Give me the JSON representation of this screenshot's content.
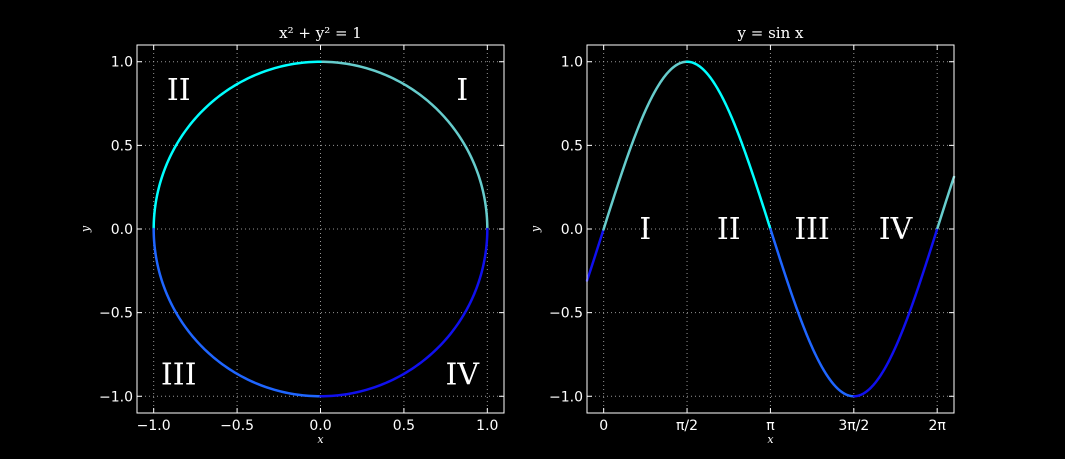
{
  "chart_data": [
    {
      "type": "line",
      "title": "x² + y² = 1",
      "xlabel": "x",
      "ylabel": "y",
      "xlim": [
        -1.1,
        1.1
      ],
      "ylim": [
        -1.1,
        1.1
      ],
      "grid": true,
      "xticks": [
        {
          "value": -1.0,
          "label": "−1.0"
        },
        {
          "value": -0.5,
          "label": "−0.5"
        },
        {
          "value": 0.0,
          "label": "0.0"
        },
        {
          "value": 0.5,
          "label": "0.5"
        },
        {
          "value": 1.0,
          "label": "1.0"
        }
      ],
      "yticks": [
        {
          "value": -1.0,
          "label": "−1.0"
        },
        {
          "value": -0.5,
          "label": "−0.5"
        },
        {
          "value": 0.0,
          "label": "0.0"
        },
        {
          "value": 0.5,
          "label": "0.5"
        },
        {
          "value": 1.0,
          "label": "1.0"
        }
      ],
      "curve": "unit-circle",
      "annotations": [
        {
          "text": "I",
          "x": 0.85,
          "y": 0.83
        },
        {
          "text": "II",
          "x": -0.85,
          "y": 0.83
        },
        {
          "text": "III",
          "x": -0.85,
          "y": -0.87
        },
        {
          "text": "IV",
          "x": 0.85,
          "y": -0.87
        }
      ]
    },
    {
      "type": "line",
      "title": "y = sin x",
      "xlabel": "x",
      "ylabel": "y",
      "xlim": [
        -0.314,
        6.6
      ],
      "ylim": [
        -1.1,
        1.1
      ],
      "grid": true,
      "xticks": [
        {
          "value": 0,
          "label": "0"
        },
        {
          "value": 1.5708,
          "label": "π/2"
        },
        {
          "value": 3.1416,
          "label": "π"
        },
        {
          "value": 4.7124,
          "label": "3π/2"
        },
        {
          "value": 6.2832,
          "label": "2π"
        }
      ],
      "yticks": [
        {
          "value": -1.0,
          "label": "−1.0"
        },
        {
          "value": -0.5,
          "label": "−0.5"
        },
        {
          "value": 0.0,
          "label": "0.0"
        },
        {
          "value": 0.5,
          "label": "0.5"
        },
        {
          "value": 1.0,
          "label": "1.0"
        }
      ],
      "curve": "sine",
      "annotations": [
        {
          "text": "I",
          "x": 0.785,
          "y": 0.0
        },
        {
          "text": "II",
          "x": 2.356,
          "y": 0.0
        },
        {
          "text": "III",
          "x": 3.927,
          "y": 0.0
        },
        {
          "text": "IV",
          "x": 5.498,
          "y": 0.0
        }
      ]
    }
  ],
  "colors": {
    "background": "#000000",
    "axes": "#ffffff",
    "grid": "#bbbbbb",
    "pale_cyan": "#66cccc",
    "cyan": "#00ffff",
    "blue": "#1f66ff",
    "dark_blue": "#1010ee"
  }
}
